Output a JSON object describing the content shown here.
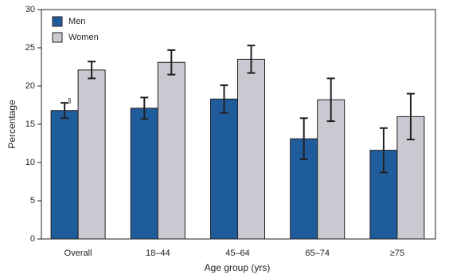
{
  "chart_data": {
    "type": "bar",
    "x_label": "Age group (yrs)",
    "y_label": "Percentage",
    "categories": [
      "Overall",
      "18–44",
      "45–64",
      "65–74",
      "≥75"
    ],
    "series": [
      {
        "name": "Men",
        "color": "#1f5c9c",
        "values": [
          16.8,
          17.1,
          18.3,
          13.1,
          11.6
        ],
        "errors": [
          1.0,
          1.4,
          1.8,
          2.7,
          2.9
        ]
      },
      {
        "name": "Women",
        "color": "#c9cad1",
        "values": [
          22.1,
          23.1,
          23.5,
          18.2,
          16.0
        ],
        "errors": [
          1.1,
          1.6,
          1.8,
          2.8,
          3.0
        ]
      }
    ],
    "annotations": [
      {
        "text": "§",
        "category": 0,
        "series": 0
      }
    ],
    "ylim": [
      0,
      30
    ],
    "yticks": [
      0,
      5,
      10,
      15,
      20,
      25,
      30
    ],
    "legend": "upper left"
  }
}
